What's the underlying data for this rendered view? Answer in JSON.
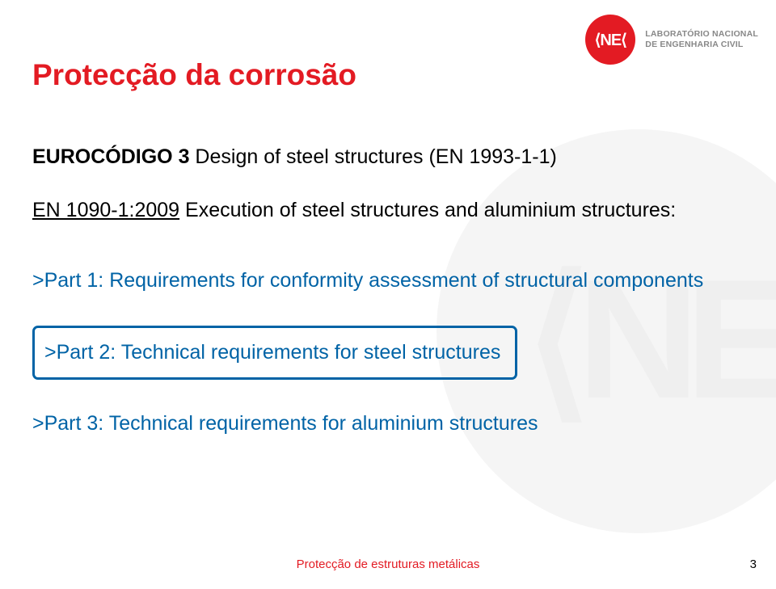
{
  "logo": {
    "badge_text": "⟨NE⟨",
    "line1": "LABORATÓRIO NACIONAL",
    "line2": "DE ENGENHARIA CIVIL",
    "badge_color": "#e31b23",
    "text_color": "#888888"
  },
  "title": "Protecção da corrosão",
  "doc": {
    "code": "EUROCÓDIGO 3",
    "desc": " Design of steel structures (EN 1993-1-1)",
    "ref": "EN 1090-1:2009",
    "ref_desc": " Execution of steel structures and aluminium structures:"
  },
  "parts": [
    {
      "text": ">Part 1: Requirements for conformity assessment of structural components",
      "highlighted": false
    },
    {
      "text": ">Part 2: Technical requirements for steel structures",
      "highlighted": true
    },
    {
      "text": ">Part 3: Technical requirements for aluminium structures",
      "highlighted": false
    }
  ],
  "footer": {
    "text": "Protecção de estruturas metálicas",
    "page": "3"
  },
  "colors": {
    "accent_red": "#e31b23",
    "accent_blue": "#0063a6",
    "watermark_bg": "#f5f5f5",
    "watermark_glyph": "#efefef"
  }
}
